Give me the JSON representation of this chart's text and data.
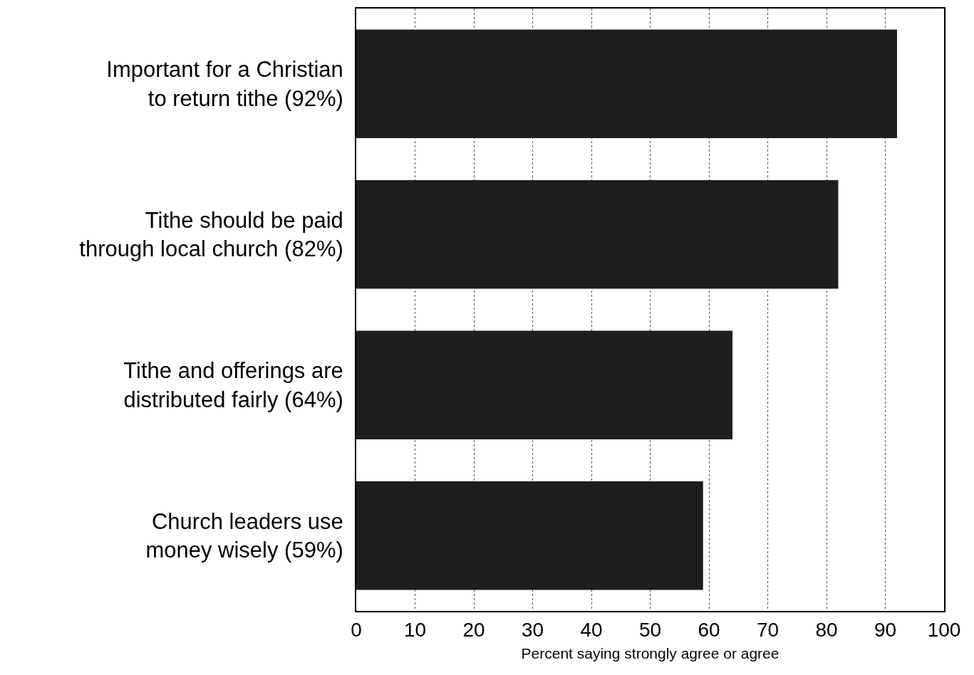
{
  "chart_data": {
    "type": "bar",
    "orientation": "horizontal",
    "xlabel": "Percent saying strongly agree or agree",
    "categories": [
      "Important for a Christian\nto return tithe (92%)",
      "Tithe should be paid\nthrough local church (82%)",
      "Tithe and offerings are\ndistributed fairly (64%)",
      "Church leaders use\nmoney wisely (59%)"
    ],
    "values": [
      92,
      82,
      64,
      59
    ],
    "color": "#1e1e1e",
    "xlim": [
      0,
      100
    ],
    "xticks": [
      0,
      10,
      20,
      30,
      40,
      50,
      60,
      70,
      80,
      90,
      100
    ],
    "grid": "x"
  }
}
